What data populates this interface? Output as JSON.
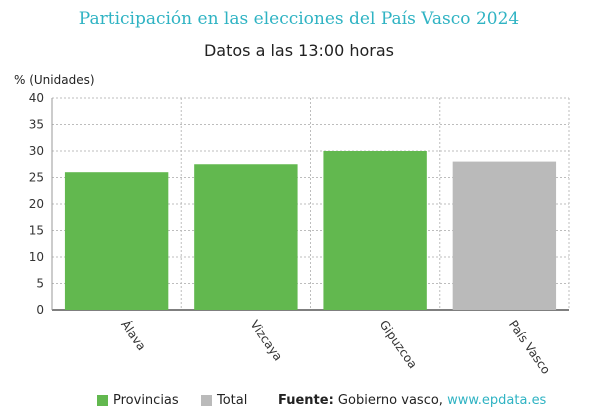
{
  "title": "Participación en las elecciones del País Vasco 2024",
  "subtitle": "Datos a las 13:00 horas",
  "chart_data": {
    "type": "bar",
    "ylabel": "% (Unidades)",
    "xlabel": "",
    "ylim": [
      0,
      40
    ],
    "yticks": [
      0,
      5,
      10,
      15,
      20,
      25,
      30,
      35,
      40
    ],
    "grid": true,
    "categories": [
      "Álava",
      "Vizcaya",
      "Gipuzcoa",
      "País Vasco"
    ],
    "values": [
      26,
      27.5,
      30,
      28
    ],
    "bar_groups": [
      "Provincias",
      "Provincias",
      "Provincias",
      "Total"
    ],
    "colors": {
      "Provincias": "#62b84f",
      "Total": "#bababa"
    }
  },
  "legend": {
    "items": [
      {
        "label": "Provincias",
        "color": "#62b84f"
      },
      {
        "label": "Total",
        "color": "#bababa"
      }
    ]
  },
  "source": {
    "label": "Fuente:",
    "text": " Gobierno vasco, ",
    "link": "www.epdata.es"
  }
}
